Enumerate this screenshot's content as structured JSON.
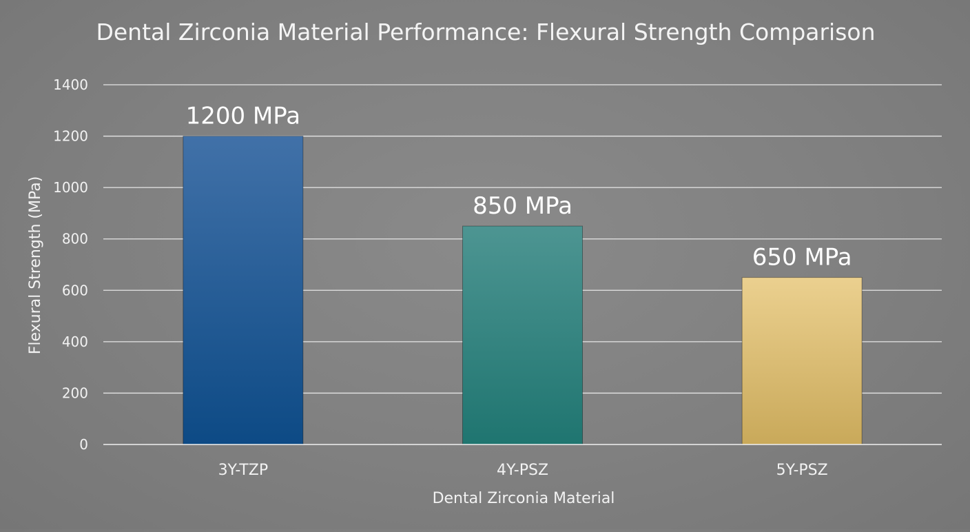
{
  "chart_data": {
    "type": "bar",
    "title": "Dental Zirconia Material Performance: Flexural Strength Comparison",
    "xlabel": "Dental Zirconia Material",
    "ylabel": "Flexural Strength (MPa)",
    "categories": [
      "3Y-TZP",
      "4Y-PSZ",
      "5Y-PSZ"
    ],
    "values": [
      1200,
      850,
      650
    ],
    "data_labels": [
      "1200 MPa",
      "850 MPa",
      "650 MPa"
    ],
    "ylim": [
      0,
      1400
    ],
    "yticks": [
      0,
      200,
      400,
      600,
      800,
      1000,
      1200,
      1400
    ],
    "grid": true,
    "legend": "none",
    "bar_colors": [
      {
        "top": "#4171a8",
        "bottom": "#0d4a85"
      },
      {
        "top": "#4d9592",
        "bottom": "#1f7570"
      },
      {
        "top": "#ebd08f",
        "bottom": "#c9a95a"
      }
    ],
    "background_color": "#808080",
    "gridline_color": "#e6e6e6"
  }
}
